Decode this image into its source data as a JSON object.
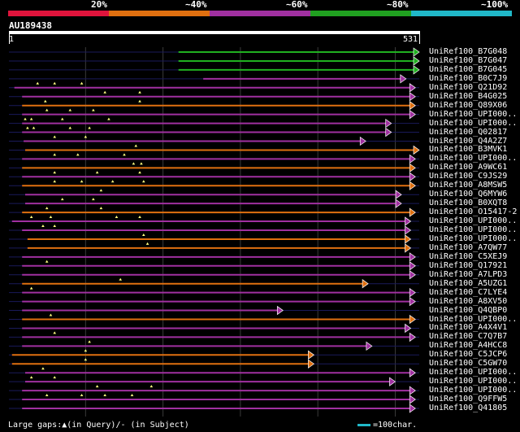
{
  "legend": {
    "labels": [
      "20%",
      "~40%",
      "~60%",
      "~80%",
      "~100%"
    ],
    "colors": [
      "#e0143c",
      "#e07010",
      "#a030a0",
      "#20a020",
      "#20b8c8"
    ]
  },
  "query": {
    "id": "AU189438",
    "start": "1",
    "end": "531",
    "length": 531
  },
  "hits": [
    {
      "name": "UniRef100_B7G048",
      "start": 220,
      "end": 531,
      "color": "#20b020",
      "arrow": true
    },
    {
      "name": "UniRef100_B7G047",
      "start": 220,
      "end": 531,
      "color": "#20b020",
      "arrow": true
    },
    {
      "name": "UniRef100_B7G045",
      "start": 220,
      "end": 531,
      "color": "#20b020",
      "arrow": true
    },
    {
      "name": "UniRef100_B0C7J9",
      "start": 252,
      "end": 514,
      "color": "#a030a0",
      "arrow": true
    },
    {
      "name": "UniRef100_Q21D92",
      "start": 8,
      "end": 526,
      "color": "#a030a0",
      "arrow": true,
      "gaps": [
        38,
        60,
        95
      ]
    },
    {
      "name": "UniRef100_B4G025",
      "start": 18,
      "end": 526,
      "color": "#a030a0",
      "arrow": true,
      "gaps": [
        125,
        170
      ]
    },
    {
      "name": "UniRef100_Q89X06",
      "start": 18,
      "end": 526,
      "color": "#e07010",
      "arrow": true,
      "gaps": [
        48,
        170
      ]
    },
    {
      "name": "UniRef100_UPI000..",
      "start": 18,
      "end": 526,
      "color": "#a030a0",
      "arrow": true,
      "gaps": [
        50,
        80,
        110
      ]
    },
    {
      "name": "UniRef100_UPI000..",
      "start": 18,
      "end": 495,
      "color": "#a030a0",
      "arrow": true,
      "gaps": [
        22,
        30,
        70,
        130
      ]
    },
    {
      "name": "UniRef100_Q02817",
      "start": 18,
      "end": 495,
      "color": "#a030a0",
      "arrow": true,
      "gaps": [
        25,
        33,
        80,
        105
      ]
    },
    {
      "name": "UniRef100_Q4A2Z7",
      "start": 20,
      "end": 462,
      "color": "#a030a0",
      "arrow": true,
      "gaps": [
        60,
        100
      ]
    },
    {
      "name": "UniRef100_B3MVK1",
      "start": 22,
      "end": 531,
      "color": "#e07010",
      "arrow": true,
      "gaps": [
        165
      ]
    },
    {
      "name": "UniRef100_UPI000..",
      "start": 18,
      "end": 526,
      "color": "#a030a0",
      "arrow": true,
      "gaps": [
        60,
        90,
        150
      ]
    },
    {
      "name": "UniRef100_A9WC61",
      "start": 18,
      "end": 526,
      "color": "#e07010",
      "arrow": true,
      "gaps": [
        162,
        172
      ]
    },
    {
      "name": "UniRef100_C9JS29",
      "start": 18,
      "end": 526,
      "color": "#a030a0",
      "arrow": true,
      "gaps": [
        60,
        115,
        170
      ]
    },
    {
      "name": "UniRef100_A8MSW5",
      "start": 18,
      "end": 526,
      "color": "#e07010",
      "arrow": true,
      "gaps": [
        60,
        95,
        135,
        175
      ]
    },
    {
      "name": "UniRef100_Q6MYW6",
      "start": 22,
      "end": 508,
      "color": "#a030a0",
      "arrow": true,
      "gaps": [
        120
      ]
    },
    {
      "name": "UniRef100_B0XQT8",
      "start": 22,
      "end": 508,
      "color": "#a030a0",
      "arrow": true,
      "gaps": [
        70,
        110
      ]
    },
    {
      "name": "UniRef100_O15417-2",
      "start": 18,
      "end": 526,
      "color": "#e07010",
      "arrow": true,
      "gaps": [
        50,
        120
      ]
    },
    {
      "name": "UniRef100_UPI000..",
      "start": 5,
      "end": 520,
      "color": "#a030a0",
      "arrow": true,
      "gaps": [
        30,
        55,
        140,
        170
      ]
    },
    {
      "name": "UniRef100_UPI000..",
      "start": 18,
      "end": 520,
      "color": "#a030a0",
      "arrow": true,
      "gaps": [
        45,
        60
      ]
    },
    {
      "name": "UniRef100_UPI000..",
      "start": 25,
      "end": 520,
      "color": "#e07010",
      "arrow": true,
      "gaps": [
        175
      ]
    },
    {
      "name": "UniRef100_A7QW77",
      "start": 25,
      "end": 520,
      "color": "#e07010",
      "arrow": true,
      "gaps": [
        180
      ]
    },
    {
      "name": "UniRef100_C5XEJ9",
      "start": 18,
      "end": 526,
      "color": "#a030a0",
      "arrow": true
    },
    {
      "name": "UniRef100_Q17921",
      "start": 18,
      "end": 526,
      "color": "#a030a0",
      "arrow": true,
      "gaps": [
        50
      ]
    },
    {
      "name": "UniRef100_A7LPD3",
      "start": 18,
      "end": 526,
      "color": "#a030a0",
      "arrow": true
    },
    {
      "name": "UniRef100_A5UZG1",
      "start": 18,
      "end": 465,
      "color": "#e07010",
      "arrow": true,
      "gaps": [
        145
      ]
    },
    {
      "name": "UniRef100_C7LYE4",
      "start": 18,
      "end": 526,
      "color": "#a030a0",
      "arrow": true,
      "gaps": [
        30
      ]
    },
    {
      "name": "UniRef100_A8XV50",
      "start": 18,
      "end": 526,
      "color": "#a030a0",
      "arrow": true
    },
    {
      "name": "UniRef100_Q4QBP0",
      "start": 18,
      "end": 355,
      "color": "#a030a0",
      "arrow": true
    },
    {
      "name": "UniRef100_UPI000..",
      "start": 18,
      "end": 526,
      "color": "#e07010",
      "arrow": true,
      "gaps": [
        55
      ]
    },
    {
      "name": "UniRef100_A4X4V1",
      "start": 18,
      "end": 520,
      "color": "#a030a0",
      "arrow": true
    },
    {
      "name": "UniRef100_C7Q7B7",
      "start": 18,
      "end": 526,
      "color": "#a030a0",
      "arrow": true,
      "gaps": [
        60
      ]
    },
    {
      "name": "UniRef100_A4HCC8",
      "start": 18,
      "end": 470,
      "color": "#a030a0",
      "arrow": true,
      "gaps": [
        105
      ]
    },
    {
      "name": "UniRef100_C5JCP6",
      "start": 5,
      "end": 395,
      "color": "#e07010",
      "arrow": true,
      "gaps": [
        100
      ]
    },
    {
      "name": "UniRef100_C5GW70",
      "start": 5,
      "end": 395,
      "color": "#e07010",
      "arrow": true,
      "gaps": [
        100
      ]
    },
    {
      "name": "UniRef100_UPI000..",
      "start": 22,
      "end": 526,
      "color": "#a030a0",
      "arrow": true,
      "gaps": [
        45
      ]
    },
    {
      "name": "UniRef100_UPI000..",
      "start": 22,
      "end": 500,
      "color": "#a030a0",
      "arrow": true,
      "gaps": [
        30,
        60
      ]
    },
    {
      "name": "UniRef100_UPI000..",
      "start": 18,
      "end": 526,
      "color": "#a030a0",
      "arrow": true,
      "gaps": [
        115,
        185
      ]
    },
    {
      "name": "UniRef100_Q9FFW5",
      "start": 18,
      "end": 526,
      "color": "#a030a0",
      "arrow": true,
      "gaps": [
        50,
        95,
        125,
        160
      ]
    },
    {
      "name": "UniRef100_Q41805",
      "start": 18,
      "end": 526,
      "color": "#a030a0",
      "arrow": true
    }
  ],
  "footer": {
    "gaps_legend": "Large gaps:▲(in Query)/- (in Subject)",
    "scale_legend": "=100char."
  }
}
